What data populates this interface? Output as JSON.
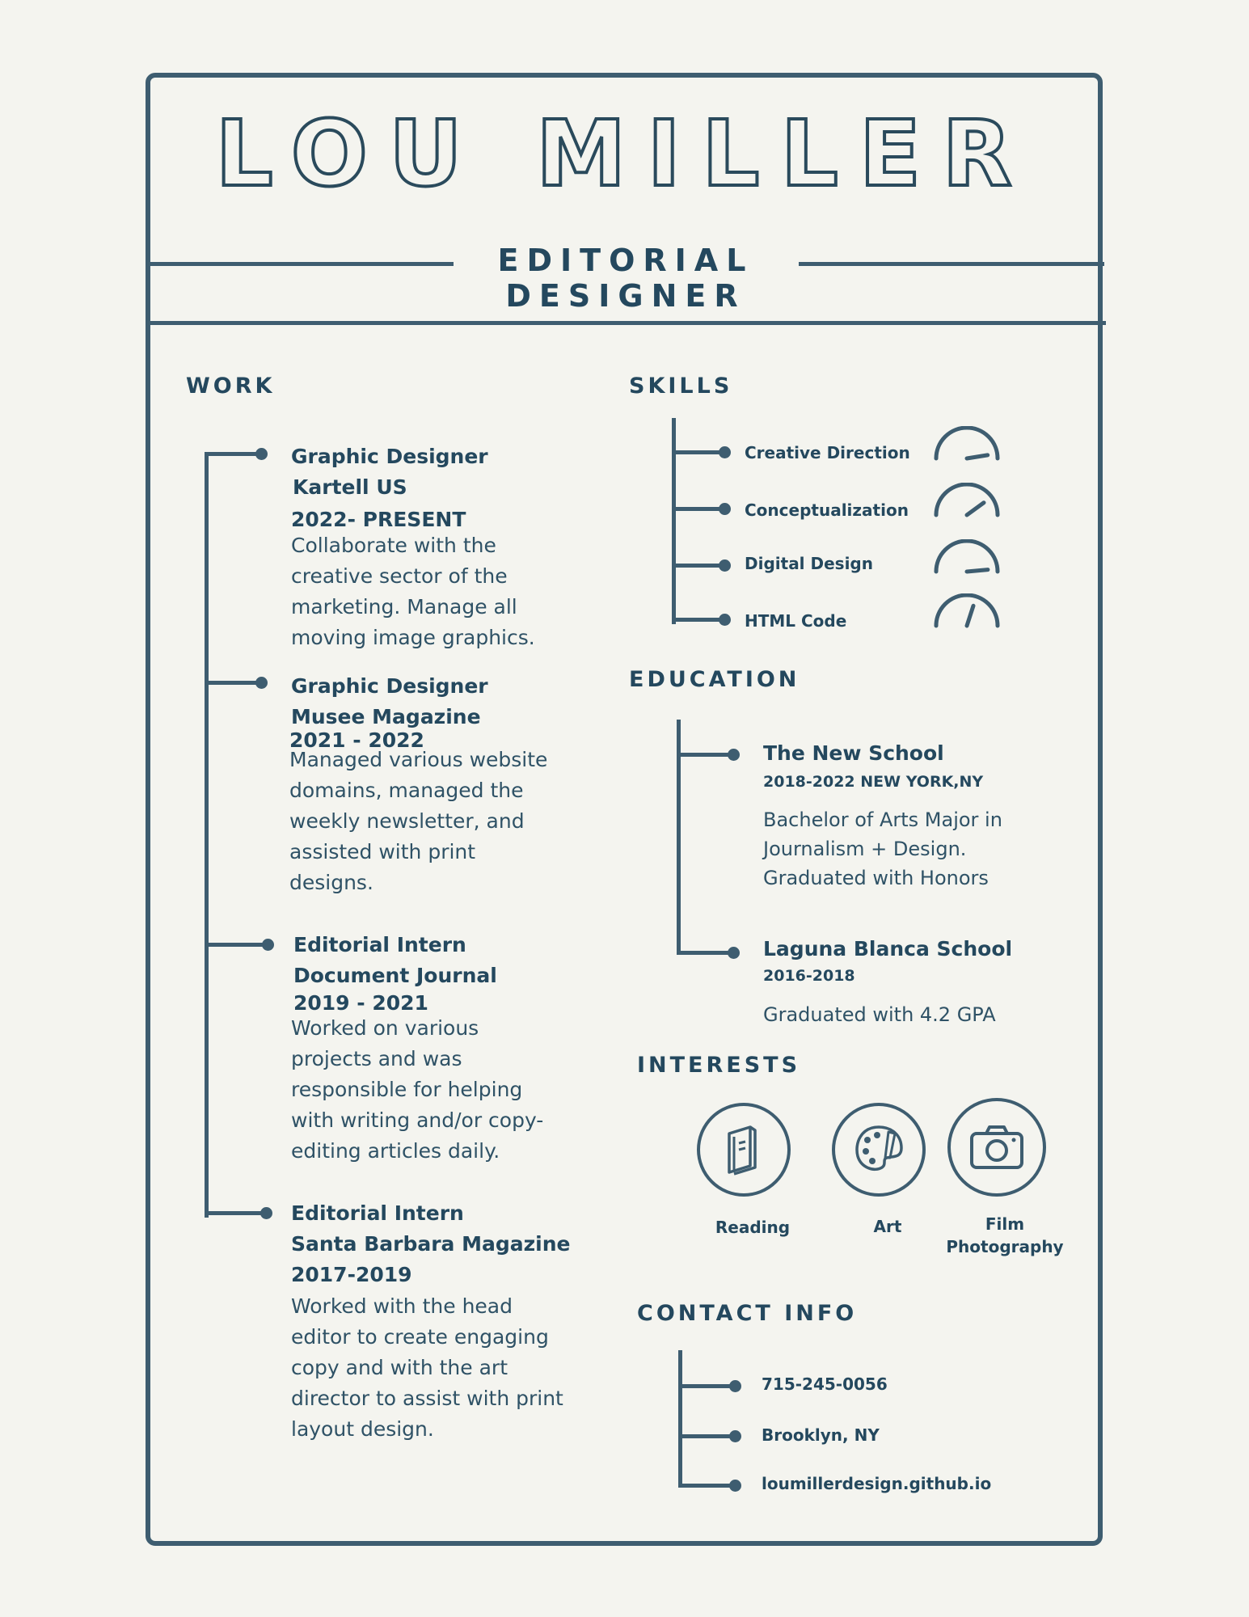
{
  "header": {
    "name": "LOU MILLER",
    "title_line1": "EDITORIAL",
    "title_line2": "DESIGNER"
  },
  "work": {
    "heading": "WORK",
    "entries": [
      {
        "role": "Graphic Designer",
        "company": " Kartell US",
        "dates": "2022- PRESENT",
        "description": "Collaborate with the creative sector of the marketing. Manage all moving image graphics."
      },
      {
        "role": "Graphic Designer",
        "company": "Musee Magazine",
        "dates": "2021 - 2022",
        "description": "Managed various website domains, managed the weekly newsletter, and assisted with print designs."
      },
      {
        "role": "Editorial Intern",
        "company": "Document Journal",
        "dates": "2019 - 2021",
        "description": "Worked on various projects and was responsible for helping with writing and/or copy-editing articles daily."
      },
      {
        "role": "Editorial Intern",
        "company": "Santa  Barbara Magazine",
        "dates": "2017-2019",
        "description": "Worked with the head editor to create engaging copy and with the art director to assist with print layout design."
      }
    ]
  },
  "skills": {
    "heading": "SKILLS",
    "items": [
      {
        "label": "Creative Direction",
        "level": 0.95
      },
      {
        "label": "Conceptualization",
        "level": 0.8
      },
      {
        "label": "Digital Design",
        "level": 0.97
      },
      {
        "label": "HTML Code",
        "level": 0.6
      }
    ]
  },
  "education": {
    "heading": "EDUCATION",
    "entries": [
      {
        "school": "The New School",
        "dates": "2018-2022 NEW YORK,NY",
        "description": "Bachelor of  Arts Major in Journalism + Design. Graduated with Honors"
      },
      {
        "school": "Laguna Blanca School",
        "dates": "2016-2018",
        "description": "Graduated with 4.2 GPA"
      }
    ]
  },
  "interests": {
    "heading": "INTERESTS",
    "items": [
      {
        "label": "Reading",
        "icon": "book-icon"
      },
      {
        "label": "Art",
        "icon": "palette-icon"
      },
      {
        "label_line1": "Film",
        "label_line2": "Photography",
        "icon": "camera-icon"
      }
    ]
  },
  "contact": {
    "heading": "CONTACT INFO",
    "phone": "715-245-0056",
    "location": "Brooklyn, NY",
    "website": "loumillerdesign.github.io"
  },
  "colors": {
    "background": "#f4f4ef",
    "ink": "#24485e",
    "line": "#3e5d70"
  }
}
